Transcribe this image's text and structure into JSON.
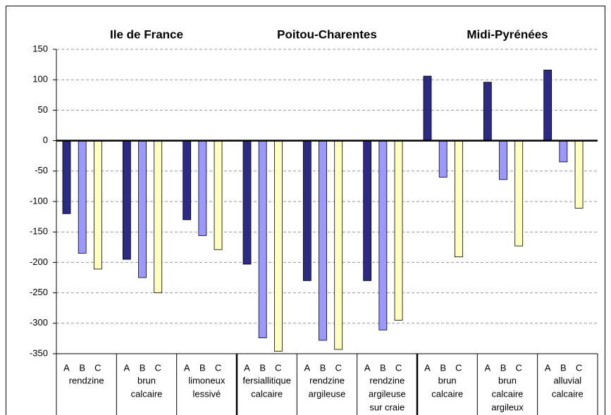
{
  "chart_data": {
    "type": "bar",
    "regions": [
      "Ile de France",
      "Poitou-Charentes",
      "Midi-Pyrénées"
    ],
    "categories": [
      [
        "rendzine"
      ],
      [
        "brun",
        "calcaire"
      ],
      [
        "limoneux",
        "lessivé"
      ],
      [
        "fersiallitique",
        "calcaire"
      ],
      [
        "rendzine",
        "argileuse"
      ],
      [
        "rendzine",
        "argileuse",
        "sur craie"
      ],
      [
        "brun",
        "calcaire"
      ],
      [
        "brun",
        "calcaire",
        "argileux"
      ],
      [
        "alluvial",
        "calcaire"
      ]
    ],
    "series": [
      {
        "name": "A",
        "color": "#2b2b85",
        "values": [
          -120,
          -195,
          -130,
          -203,
          -230,
          -230,
          106,
          96,
          116
        ]
      },
      {
        "name": "B",
        "color": "#9999ff",
        "values": [
          -185,
          -225,
          -156,
          -324,
          -328,
          -311,
          -60,
          -64,
          -35
        ]
      },
      {
        "name": "C",
        "color": "#ffffc0",
        "values": [
          -211,
          -250,
          -179,
          -346,
          -343,
          -295,
          -191,
          -173,
          -111
        ]
      }
    ],
    "ylim": [
      -350,
      150
    ],
    "yticks": [
      -350,
      -300,
      -250,
      -200,
      -150,
      -100,
      -50,
      0,
      50,
      100,
      150
    ],
    "grid": true
  }
}
